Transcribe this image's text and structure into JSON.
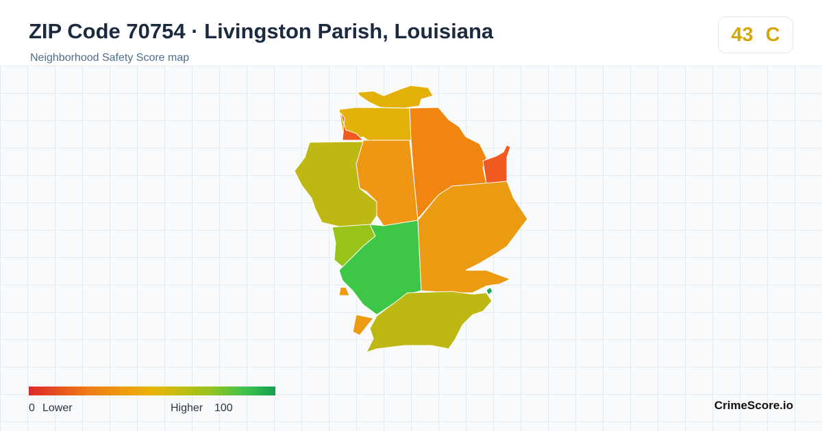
{
  "header": {
    "title": "ZIP Code 70754 · Livingston Parish, Louisiana",
    "subtitle": "Neighborhood Safety Score map"
  },
  "score": {
    "value": "43",
    "grade": "C"
  },
  "legend": {
    "min": "0",
    "min_label": "Lower",
    "max_label": "Higher",
    "max": "100"
  },
  "footer": {
    "brand": "CrimeScore.io"
  }
}
